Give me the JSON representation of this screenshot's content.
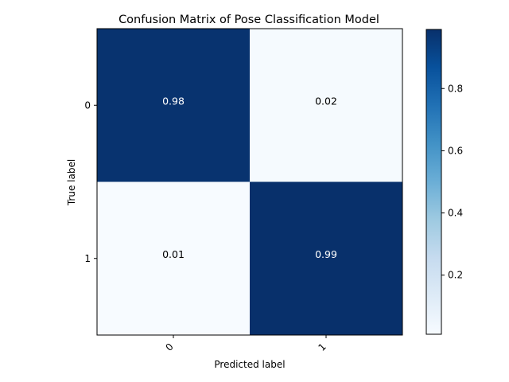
{
  "chart_data": {
    "type": "heatmap",
    "title": "Confusion Matrix of Pose Classification Model",
    "xlabel": "Predicted label",
    "ylabel": "True label",
    "x_categories": [
      "0",
      "1"
    ],
    "y_categories": [
      "0",
      "1"
    ],
    "values": [
      [
        0.98,
        0.02
      ],
      [
        0.01,
        0.99
      ]
    ],
    "cell_labels": [
      [
        "0.98",
        "0.02"
      ],
      [
        "0.01",
        "0.99"
      ]
    ],
    "colormap": "Blues",
    "colorbar": {
      "range": [
        0.01,
        0.99
      ],
      "ticks": [
        0.2,
        0.4,
        0.6,
        0.8
      ],
      "tick_labels": [
        "0.2",
        "0.4",
        "0.6",
        "0.8"
      ]
    },
    "grid": false,
    "xtick_rotation_deg": 45
  }
}
